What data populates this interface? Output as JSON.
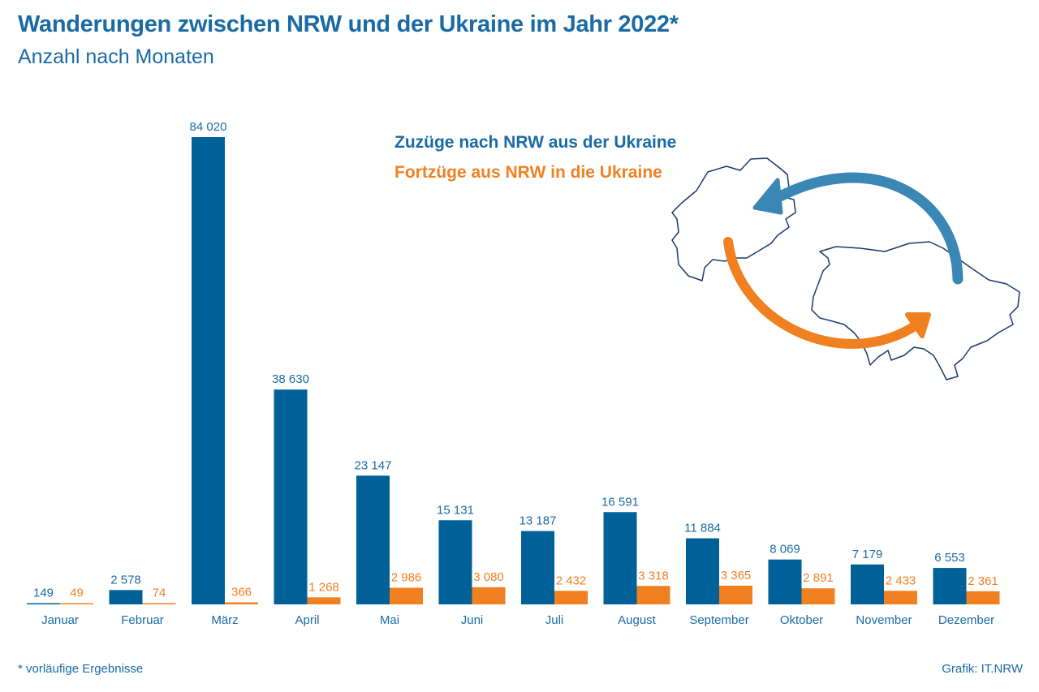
{
  "header": {
    "title": "Wanderungen zwischen NRW und der Ukraine im Jahr 2022*",
    "subtitle": "Anzahl nach Monaten"
  },
  "legend": {
    "zuzuege": "Zuzüge nach NRW aus der Ukraine",
    "fortzuege": "Fortzüge aus NRW in die Ukraine"
  },
  "footer": {
    "footnote": "*  vorläufige Ergebnisse",
    "credit": "Grafik: IT.NRW"
  },
  "colors": {
    "blue": "#006199",
    "orange": "#f08020",
    "text_blue": "#1a6aa5",
    "map_outline": "#1a3a6a",
    "arrow_blue": "#3a86b4"
  },
  "icons": [
    "nrw-map-outline-icon",
    "ukraine-map-outline-icon",
    "arrow-to-nrw-icon",
    "arrow-to-ukraine-icon"
  ],
  "chart_data": {
    "type": "bar",
    "title": "Wanderungen zwischen NRW und der Ukraine im Jahr 2022*",
    "subtitle": "Anzahl nach Monaten",
    "categories": [
      "Januar",
      "Februar",
      "März",
      "April",
      "Mai",
      "Juni",
      "Juli",
      "August",
      "September",
      "Oktober",
      "November",
      "Dezember"
    ],
    "series": [
      {
        "name": "Zuzüge nach NRW aus der Ukraine",
        "color": "#006199",
        "values": [
          149,
          2578,
          84020,
          38630,
          23147,
          15131,
          13187,
          16591,
          11884,
          8069,
          7179,
          6553
        ],
        "labels": [
          "149",
          "2 578",
          "84 020",
          "38 630",
          "23 147",
          "15 131",
          "13 187",
          "16 591",
          "11 884",
          "8 069",
          "7 179",
          "6 553"
        ]
      },
      {
        "name": "Fortzüge aus NRW in die Ukraine",
        "color": "#f08020",
        "values": [
          49,
          74,
          366,
          1268,
          2986,
          3080,
          2432,
          3318,
          3365,
          2891,
          2433,
          2361
        ],
        "labels": [
          "49",
          "74",
          "366",
          "1 268",
          "2 986",
          "3 080",
          "2 432",
          "3 318",
          "3 365",
          "2 891",
          "2 433",
          "2 361"
        ]
      }
    ],
    "xlabel": "",
    "ylabel": "",
    "ylim": [
      0,
      84020
    ],
    "grid": false,
    "legend_position": "top-right"
  }
}
